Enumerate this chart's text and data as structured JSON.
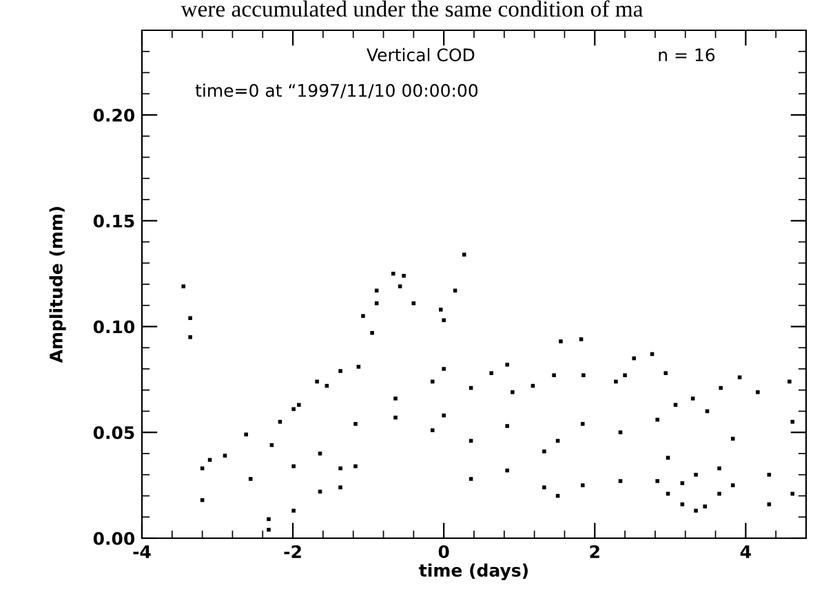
{
  "chart_data": {
    "type": "scatter",
    "xlabel": "time (days)",
    "ylabel": "Amplitude (mm)",
    "annotations": [
      "were accumulated under the same condition of ma",
      "Vertical COD",
      "n = 16",
      "time=0 at “1997/11/10 00:00:00"
    ],
    "xlim": [
      -4,
      4.8
    ],
    "ylim": [
      0,
      0.24
    ],
    "xticks": [
      -4,
      -2,
      0,
      2,
      4
    ],
    "yticks": [
      {
        "value": 0,
        "label": "0.00"
      },
      {
        "value": 0.05,
        "label": "0.05"
      },
      {
        "value": 0.1,
        "label": "0.10"
      },
      {
        "value": 0.15,
        "label": "0.15"
      },
      {
        "value": 0.2,
        "label": "0.20"
      }
    ],
    "grid": false,
    "marker": "square",
    "series": [
      {
        "color": "#000000",
        "x": [
          -3.1,
          -2.9,
          -2.62,
          -2.28,
          -2.17,
          -1.99,
          -1.92,
          -1.68,
          -1.55,
          -1.37,
          -1.13,
          -1.07,
          -0.89,
          -0.89,
          -0.67,
          -0.58,
          -0.53,
          -0.4,
          -0.04,
          0.0,
          0.15,
          0.27,
          0.36,
          0.63,
          0.84,
          0.91,
          1.18,
          1.46,
          1.55,
          1.82,
          1.85,
          2.28,
          2.4,
          2.52,
          2.76,
          2.94,
          3.07,
          3.3,
          3.49,
          3.67,
          3.92,
          4.16,
          4.58
        ],
        "values": [
          0.037,
          0.039,
          0.049,
          0.044,
          0.055,
          0.061,
          0.063,
          0.074,
          0.072,
          0.079,
          0.081,
          0.105,
          0.111,
          0.117,
          0.125,
          0.119,
          0.124,
          0.111,
          0.108,
          0.103,
          0.117,
          0.134,
          0.071,
          0.078,
          0.082,
          0.069,
          0.072,
          0.077,
          0.093,
          0.094,
          0.077,
          0.074,
          0.077,
          0.085,
          0.087,
          0.078,
          0.063,
          0.066,
          0.06,
          0.071,
          0.076,
          0.069,
          0.074
        ]
      },
      {
        "color": "#000000",
        "x": [
          -3.45,
          -3.36,
          -3.36,
          -3.2,
          -3.2,
          -2.56,
          -2.32,
          -2.32,
          -1.99,
          -1.99,
          -1.64,
          -1.64,
          -1.37,
          -1.37,
          -1.17,
          -1.17,
          -0.95,
          -0.64,
          -0.64,
          -0.15,
          -0.15,
          0.0,
          0.0,
          0.36,
          0.36,
          0.84,
          0.84,
          1.33,
          1.33,
          1.51,
          1.51,
          1.84,
          1.84,
          2.34,
          2.34,
          2.83,
          2.83,
          2.97,
          2.97,
          3.16,
          3.16,
          3.34,
          3.34,
          3.46,
          3.65,
          3.65,
          3.83,
          3.83,
          4.31,
          4.31,
          4.62,
          4.62
        ],
        "values": [
          0.119,
          0.104,
          0.095,
          0.033,
          0.018,
          0.028,
          0.009,
          0.004,
          0.034,
          0.013,
          0.04,
          0.022,
          0.033,
          0.024,
          0.054,
          0.034,
          0.097,
          0.066,
          0.057,
          0.074,
          0.051,
          0.08,
          0.058,
          0.046,
          0.028,
          0.053,
          0.032,
          0.041,
          0.024,
          0.046,
          0.02,
          0.054,
          0.025,
          0.05,
          0.027,
          0.056,
          0.027,
          0.038,
          0.021,
          0.026,
          0.016,
          0.03,
          0.013,
          0.015,
          0.033,
          0.021,
          0.047,
          0.025,
          0.03,
          0.016,
          0.055,
          0.021
        ]
      }
    ]
  }
}
